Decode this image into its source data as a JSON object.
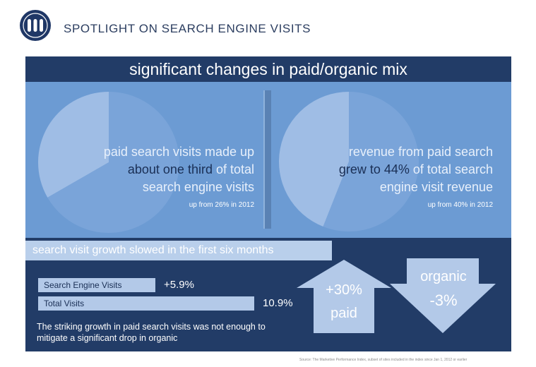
{
  "header": {
    "title": "SPOTLIGHT ON SEARCH ENGINE VISITS",
    "logo_icon": "marketing-logo-icon"
  },
  "headline": "significant changes in paid/organic mix",
  "colors": {
    "panel": "#223c67",
    "band": "#6c9bd3",
    "pie_paid": "#9fbde5",
    "pie_rest": "#7aa4d9",
    "bar": "#b3c9e8"
  },
  "left_pie": {
    "line1": "paid search visits made up",
    "line2a": "about one third",
    "line2b": " of total",
    "line3": "search engine visits",
    "note": "up from 26% in 2012"
  },
  "right_pie": {
    "line1": "revenue from paid search",
    "line2a": "grew to 44%",
    "line2b": " of total search",
    "line3": "engine visit revenue",
    "note": "up from 40% in 2012"
  },
  "growth": {
    "banner": "search visit growth slowed in the first six months",
    "footnote": "The striking growth in paid search visits was not enough to mitigate a significant drop in organic"
  },
  "arrows": {
    "paid_value": "+30%",
    "paid_label": "paid",
    "organic_label": "organic",
    "organic_value": "-3%"
  },
  "source": "Source: The Marketive Performance Index, subset of sites included in the index since Jan 1, 2012 or earlier",
  "chart_data": [
    {
      "type": "pie",
      "labels": [
        "paid",
        "organic"
      ],
      "values": [
        33.3,
        66.7
      ]
    },
    {
      "type": "pie",
      "labels": [
        "paid",
        "organic"
      ],
      "values": [
        44,
        56
      ]
    },
    {
      "type": "bar",
      "categories": [
        "Search Engine Visits",
        "Total Visits"
      ],
      "values": [
        5.9,
        10.9
      ],
      "value_labels": [
        "+5.9%",
        "10.9%"
      ]
    }
  ]
}
